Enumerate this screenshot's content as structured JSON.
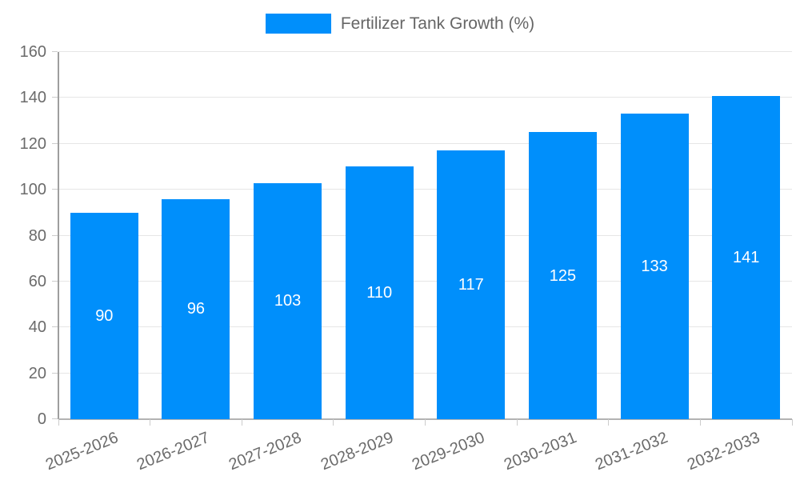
{
  "chart_data": {
    "type": "bar",
    "title": "Fertilizer Tank Growth (%)",
    "categories": [
      "2025-2026",
      "2026-2027",
      "2027-2028",
      "2028-2029",
      "2029-2030",
      "2030-2031",
      "2031-2032",
      "2032-2033"
    ],
    "values": [
      90,
      96,
      103,
      110,
      117,
      125,
      133,
      141
    ],
    "xlabel": "",
    "ylabel": "",
    "ylim": [
      0,
      160
    ],
    "ytick_step": 20,
    "ytick_labels": [
      "0",
      "20",
      "40",
      "60",
      "80",
      "100",
      "120",
      "140",
      "160"
    ],
    "grid": true,
    "legend_position": "top",
    "legend_entries": [
      "Fertilizer Tank Growth (%)"
    ],
    "bar_color": "#008FFB",
    "bar_value_label_color": "#ffffff",
    "axis_text_color": "#6b6b6b",
    "gridline_color": "#e6e6e6",
    "y_axis_line_color": "#9e9e9e",
    "x_axis_line_color": "#b3b3b3",
    "tick_color": "#cccccc"
  }
}
